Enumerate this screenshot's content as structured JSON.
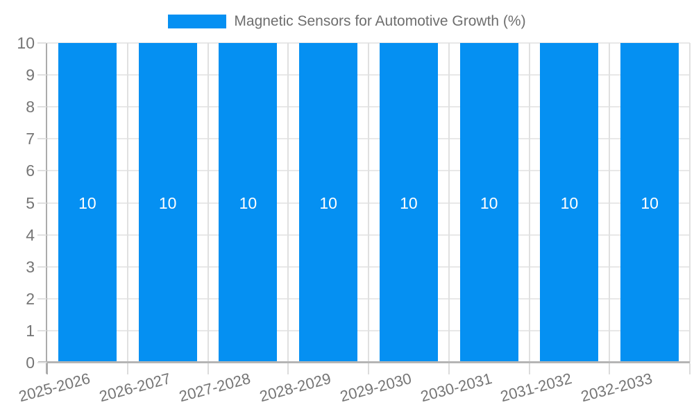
{
  "chart_data": {
    "type": "bar",
    "title": "Magnetic Sensors for Automotive Growth (%)",
    "categories": [
      "2025-2026",
      "2026-2027",
      "2027-2028",
      "2028-2029",
      "2029-2030",
      "2030-2031",
      "2031-2032",
      "2032-2033"
    ],
    "series": [
      {
        "name": "Magnetic Sensors for Automotive Growth (%)",
        "values": [
          10,
          10,
          10,
          10,
          10,
          10,
          10,
          10
        ]
      }
    ],
    "bar_value_labels": [
      "10",
      "10",
      "10",
      "10",
      "10",
      "10",
      "10",
      "10"
    ],
    "xlabel": "",
    "ylabel": "",
    "ylim": [
      0,
      10
    ],
    "yticks": [
      0,
      1,
      2,
      3,
      4,
      5,
      6,
      7,
      8,
      9,
      10
    ],
    "grid": true,
    "legend": {
      "position": "top",
      "labels": [
        "Magnetic Sensors for Automotive Growth (%)"
      ]
    },
    "colors": {
      "bar": "#0590f2",
      "bar_label_text": "#ffffff",
      "grid_horizontal": "#e8e8e8",
      "grid_vertical": "#e0e0e0",
      "axis_line": "#ababab",
      "tick_label_text": "#757575",
      "legend_text": "#6e6e6e",
      "background": "#ffffff"
    }
  }
}
